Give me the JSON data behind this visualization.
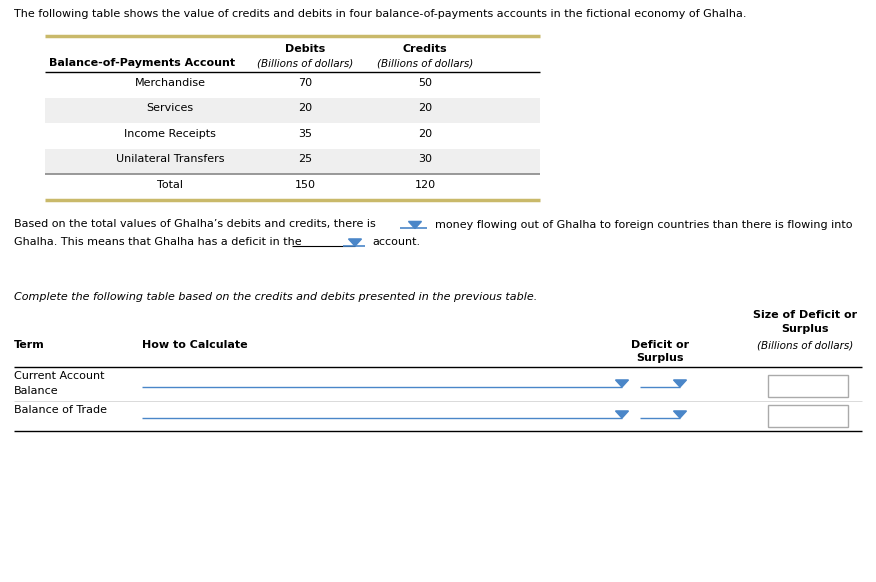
{
  "title_text": "The following table shows the value of credits and debits in four balance-of-payments accounts in the fictional economy of Ghalha.",
  "table1_rows": [
    [
      "Merchandise",
      "70",
      "50"
    ],
    [
      "Services",
      "20",
      "20"
    ],
    [
      "Income Receipts",
      "35",
      "20"
    ],
    [
      "Unilateral Transfers",
      "25",
      "30"
    ],
    [
      "Total",
      "150",
      "120"
    ]
  ],
  "shaded_rows": [
    1,
    3
  ],
  "total_row": 4,
  "para1a": "Based on the total values of Ghalha’s debits and credits, there is",
  "para1b": "money flowing out of Ghalha to foreign countries than there is flowing into",
  "para2a": "Ghalha. This means that Ghalha has a deficit in the",
  "para2b": "account.",
  "italic_text": "Complete the following table based on the credits and debits presented in the previous table.",
  "gold_color": "#c9b96a",
  "shaded_bg": "#efefef",
  "blue_color": "#4a86c8",
  "dark_sep_color": "#888888",
  "box_border_color": "#aaaaaa"
}
